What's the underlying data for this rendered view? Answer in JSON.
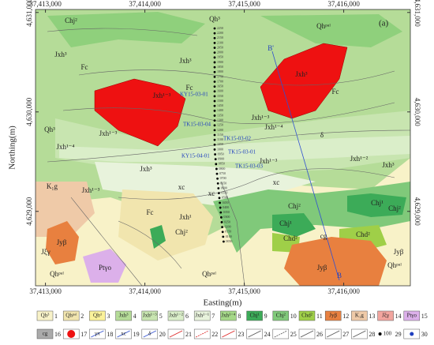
{
  "map": {
    "panel_label": "(a)",
    "x_axis_label": "Easting(m)",
    "y_axis_label": "Northing(m)",
    "xlim": [
      37412900,
      37416670
    ],
    "ylim": [
      4628252,
      4631030
    ],
    "xticks": [
      {
        "value": 37413000,
        "label": "37,413,000"
      },
      {
        "value": 37414000,
        "label": "37,414,000"
      },
      {
        "value": 37415000,
        "label": "37,415,000"
      },
      {
        "value": 37416000,
        "label": "37,416,000"
      }
    ],
    "yticks": [
      {
        "value": 4629000,
        "label": "4,629,000"
      },
      {
        "value": 4630000,
        "label": "4,630,000"
      },
      {
        "value": 4631000,
        "label": "4,631,000"
      }
    ],
    "labels": [
      "Chj²",
      "Qh³",
      "Qhᵖᵃˡ",
      "Jxh³",
      "Fc",
      "Jxh³",
      "Fc",
      "Jxh³",
      "Fc",
      "Jxh¹⁻³",
      "Jxh¹⁻³",
      "Qh³",
      "Jxh¹⁻⁴",
      "Jxh¹⁻⁴",
      "δ",
      "Jxh¹⁻³",
      "Jxh¹⁻²",
      "Jxh³",
      "K₁g",
      "Jxh¹⁻³",
      "xc",
      "xc",
      "Fc",
      "Jxh¹",
      "Chj²",
      "Chj²",
      "Chj¹",
      "Chd²",
      "cg",
      "Chd²",
      "Chj¹",
      "Jyβ",
      "Jξγ",
      "Jyβ",
      "Ptγo",
      "Qhᵖᵃˡ",
      "Qhᵖᵃˡ",
      "Qhᵖᵃˡ",
      "B'",
      "B",
      "Jxh³",
      "Chj²",
      "xc",
      "Jxh¹⁻³",
      "Jyβ"
    ],
    "stations": [
      "KY15-03-01",
      "TK15-03-04",
      "TK15-03-02",
      "TK15-03-01",
      "KY15-04-01",
      "TK15-03-03"
    ],
    "borehole_depths": [
      "2250",
      "2200",
      "2150",
      "2100",
      "2050",
      "2000",
      "1950",
      "1900",
      "1850",
      "1800",
      "1750",
      "1700",
      "1650",
      "1600",
      "1550",
      "1500",
      "1450",
      "1400",
      "1350",
      "1300",
      "1250",
      "1200",
      "1150",
      "1100",
      "1050",
      "1000",
      "0950",
      "0900",
      "0850",
      "0800",
      "0750",
      "0700",
      "0650",
      "0600",
      "0550",
      "0500",
      "0450",
      "0400",
      "0350",
      "0300",
      "0250",
      "0200",
      "0150",
      "0100",
      "0050"
    ],
    "legend_row1": [
      {
        "label": "Qh³",
        "number": "1",
        "color": "#f8f2c8"
      },
      {
        "label": "Qhᵖᵃˡ",
        "number": "2",
        "color": "#f1e5ae"
      },
      {
        "label": "Qhᵈ",
        "number": "3",
        "color": "#fbf29a"
      },
      {
        "label": "Jxh³",
        "number": "4",
        "color": "#b5dc98"
      },
      {
        "label": "Jxh¹⁻³",
        "number": "5",
        "color": "#c8e5b0"
      },
      {
        "label": "Jxh¹⁻²",
        "number": "6",
        "color": "#daeec9"
      },
      {
        "label": "Jxh¹⁻¹",
        "number": "7",
        "color": "#e8f3dc"
      },
      {
        "label": "Jxh¹⁻⁴",
        "number": "8",
        "color": "#a5d888"
      },
      {
        "label": "Chj¹",
        "number": "9",
        "color": "#3cab58"
      },
      {
        "label": "Chj²",
        "number": "10",
        "color": "#80c97a"
      },
      {
        "label": "Chd²",
        "number": "11",
        "color": "#9fcf48"
      },
      {
        "label": "Jyβ",
        "number": "12",
        "color": "#e8803f"
      },
      {
        "label": "K₁g",
        "number": "13",
        "color": "#efcaa8"
      },
      {
        "label": "Jξγ",
        "number": "14",
        "color": "#f2a59e"
      },
      {
        "label": "Ptγo",
        "number": "15",
        "color": "#dcb0ea"
      }
    ],
    "legend_row2": [
      {
        "label": "cg",
        "number": "16"
      },
      {
        "number": "17"
      },
      {
        "label": "γπ",
        "number": "18"
      },
      {
        "label": "xc",
        "number": "19"
      },
      {
        "label": "δ",
        "number": "20"
      },
      {
        "number": "21"
      },
      {
        "number": "22"
      },
      {
        "number": "23"
      },
      {
        "number": "24"
      },
      {
        "number": "25"
      },
      {
        "number": "26"
      },
      {
        "number": "27"
      },
      {
        "number": "28"
      },
      {
        "label": "100",
        "number": "29"
      },
      {
        "number": "30"
      }
    ]
  }
}
